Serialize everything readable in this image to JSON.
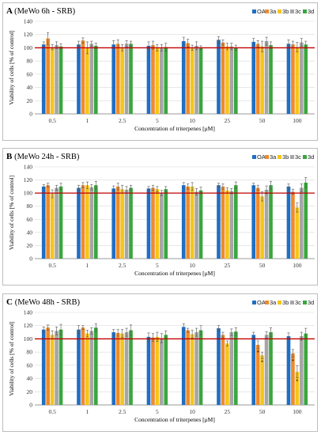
{
  "colors": {
    "OA": "#1f6fc4",
    "3a": "#f08a2b",
    "3b": "#f5c518",
    "3c": "#a6a6a6",
    "3d": "#3aa63f",
    "reference_line": "#c00000"
  },
  "chart_data": [
    {
      "type": "bar",
      "panel_letter": "A",
      "title": "(MeWo 6h - SRB)",
      "xlabel": "Concentration of triterpenes [μM]",
      "ylabel": "Viability of cells [% of control]",
      "ylim": [
        0,
        140
      ],
      "yticks": [
        "0",
        "20",
        "40",
        "60",
        "80",
        "100",
        "120",
        "140"
      ],
      "grid": true,
      "legend_position": "top-right",
      "reference_line": 100,
      "categories": [
        "0.5",
        "1",
        "2.5",
        "5",
        "10",
        "25",
        "50",
        "100"
      ],
      "series": [
        {
          "name": "OA",
          "values": [
            105,
            105,
            105,
            103,
            110,
            112,
            109,
            106
          ],
          "errors": [
            4,
            5,
            6,
            6,
            6,
            5,
            5,
            6
          ]
        },
        {
          "name": "3a",
          "values": [
            114,
            111,
            106,
            104,
            107,
            108,
            106,
            105
          ],
          "errors": [
            9,
            4,
            6,
            6,
            6,
            4,
            5,
            5
          ]
        },
        {
          "name": "3b",
          "values": [
            101,
            100,
            100,
            100,
            100,
            102,
            102,
            101
          ],
          "errors": [
            4,
            9,
            5,
            5,
            4,
            5,
            8,
            7
          ]
        },
        {
          "name": "3c",
          "values": [
            104,
            106,
            106,
            100,
            103,
            102,
            110,
            108
          ],
          "errors": [
            5,
            4,
            5,
            5,
            6,
            5,
            6,
            6
          ]
        },
        {
          "name": "3d",
          "values": [
            102,
            103,
            106,
            101,
            100,
            100,
            104,
            105
          ],
          "errors": [
            4,
            4,
            4,
            6,
            3,
            4,
            5,
            5
          ]
        }
      ]
    },
    {
      "type": "bar",
      "panel_letter": "B",
      "title": "(MeWo 24h - SRB)",
      "xlabel": "Concentration of triterpenes [μM]",
      "ylabel": "Viability of cells [% of control]",
      "ylim": [
        0,
        140
      ],
      "yticks": [
        "0",
        "20",
        "40",
        "60",
        "80",
        "100",
        "120",
        "140"
      ],
      "grid": true,
      "legend_position": "top-right",
      "reference_line": 100,
      "categories": [
        "0.5",
        "1",
        "2.5",
        "5",
        "10",
        "25",
        "50",
        "100"
      ],
      "series": [
        {
          "name": "OA",
          "values": [
            110,
            108,
            107,
            107,
            112,
            112,
            112,
            110
          ],
          "errors": [
            3,
            4,
            4,
            3,
            4,
            3,
            3,
            4
          ]
        },
        {
          "name": "3a",
          "values": [
            112,
            112,
            110,
            108,
            110,
            110,
            108,
            102
          ],
          "errors": [
            3,
            4,
            5,
            4,
            4,
            4,
            4,
            4
          ]
        },
        {
          "name": "3b",
          "values": [
            99,
            112,
            106,
            106,
            110,
            104,
            95,
            78
          ],
          "errors": [
            6,
            5,
            6,
            4,
            6,
            4,
            7,
            7
          ]
        },
        {
          "name": "3c",
          "values": [
            108,
            109,
            105,
            100,
            102,
            103,
            105,
            108
          ],
          "errors": [
            4,
            4,
            5,
            4,
            5,
            4,
            6,
            6
          ]
        },
        {
          "name": "3d",
          "values": [
            110,
            112,
            108,
            106,
            104,
            112,
            112,
            116
          ],
          "errors": [
            5,
            6,
            4,
            4,
            5,
            5,
            6,
            8
          ]
        }
      ]
    },
    {
      "type": "bar",
      "panel_letter": "C",
      "title": "(MeWo 48h - SRB)",
      "xlabel": "Concentration of triterpenes [μM]",
      "ylabel": "Viability of cells [% of control]",
      "ylim": [
        0,
        140
      ],
      "yticks": [
        "0",
        "20",
        "40",
        "60",
        "80",
        "100",
        "120",
        "140"
      ],
      "grid": true,
      "legend_position": "top-right",
      "reference_line": 100,
      "categories": [
        "0.5",
        "1",
        "2.5",
        "5",
        "10",
        "25",
        "50",
        "100"
      ],
      "series": [
        {
          "name": "OA",
          "values": [
            114,
            114,
            110,
            103,
            118,
            116,
            106,
            104
          ],
          "errors": [
            4,
            6,
            4,
            6,
            5,
            4,
            4,
            5
          ]
        },
        {
          "name": "3a",
          "values": [
            117,
            117,
            109,
            102,
            113,
            106,
            91,
            78
          ],
          "errors": [
            4,
            3,
            5,
            6,
            3,
            4,
            6,
            6
          ]
        },
        {
          "name": "3b",
          "values": [
            106,
            108,
            108,
            103,
            107,
            93,
            75,
            50
          ],
          "errors": [
            6,
            5,
            6,
            7,
            6,
            4,
            5,
            9
          ]
        },
        {
          "name": "3c",
          "values": [
            112,
            112,
            110,
            101,
            110,
            110,
            106,
            104
          ],
          "errors": [
            6,
            5,
            6,
            7,
            6,
            5,
            5,
            6
          ]
        },
        {
          "name": "3d",
          "values": [
            114,
            117,
            113,
            106,
            113,
            111,
            110,
            108
          ],
          "errors": [
            8,
            6,
            8,
            6,
            7,
            6,
            7,
            8
          ]
        }
      ],
      "significance": [
        {
          "category": "50",
          "series": "3a",
          "label": "*"
        },
        {
          "category": "50",
          "series": "3b",
          "label": "*"
        },
        {
          "category": "100",
          "series": "3a",
          "label": "*"
        },
        {
          "category": "100",
          "series": "3b",
          "label": "*"
        }
      ]
    }
  ]
}
